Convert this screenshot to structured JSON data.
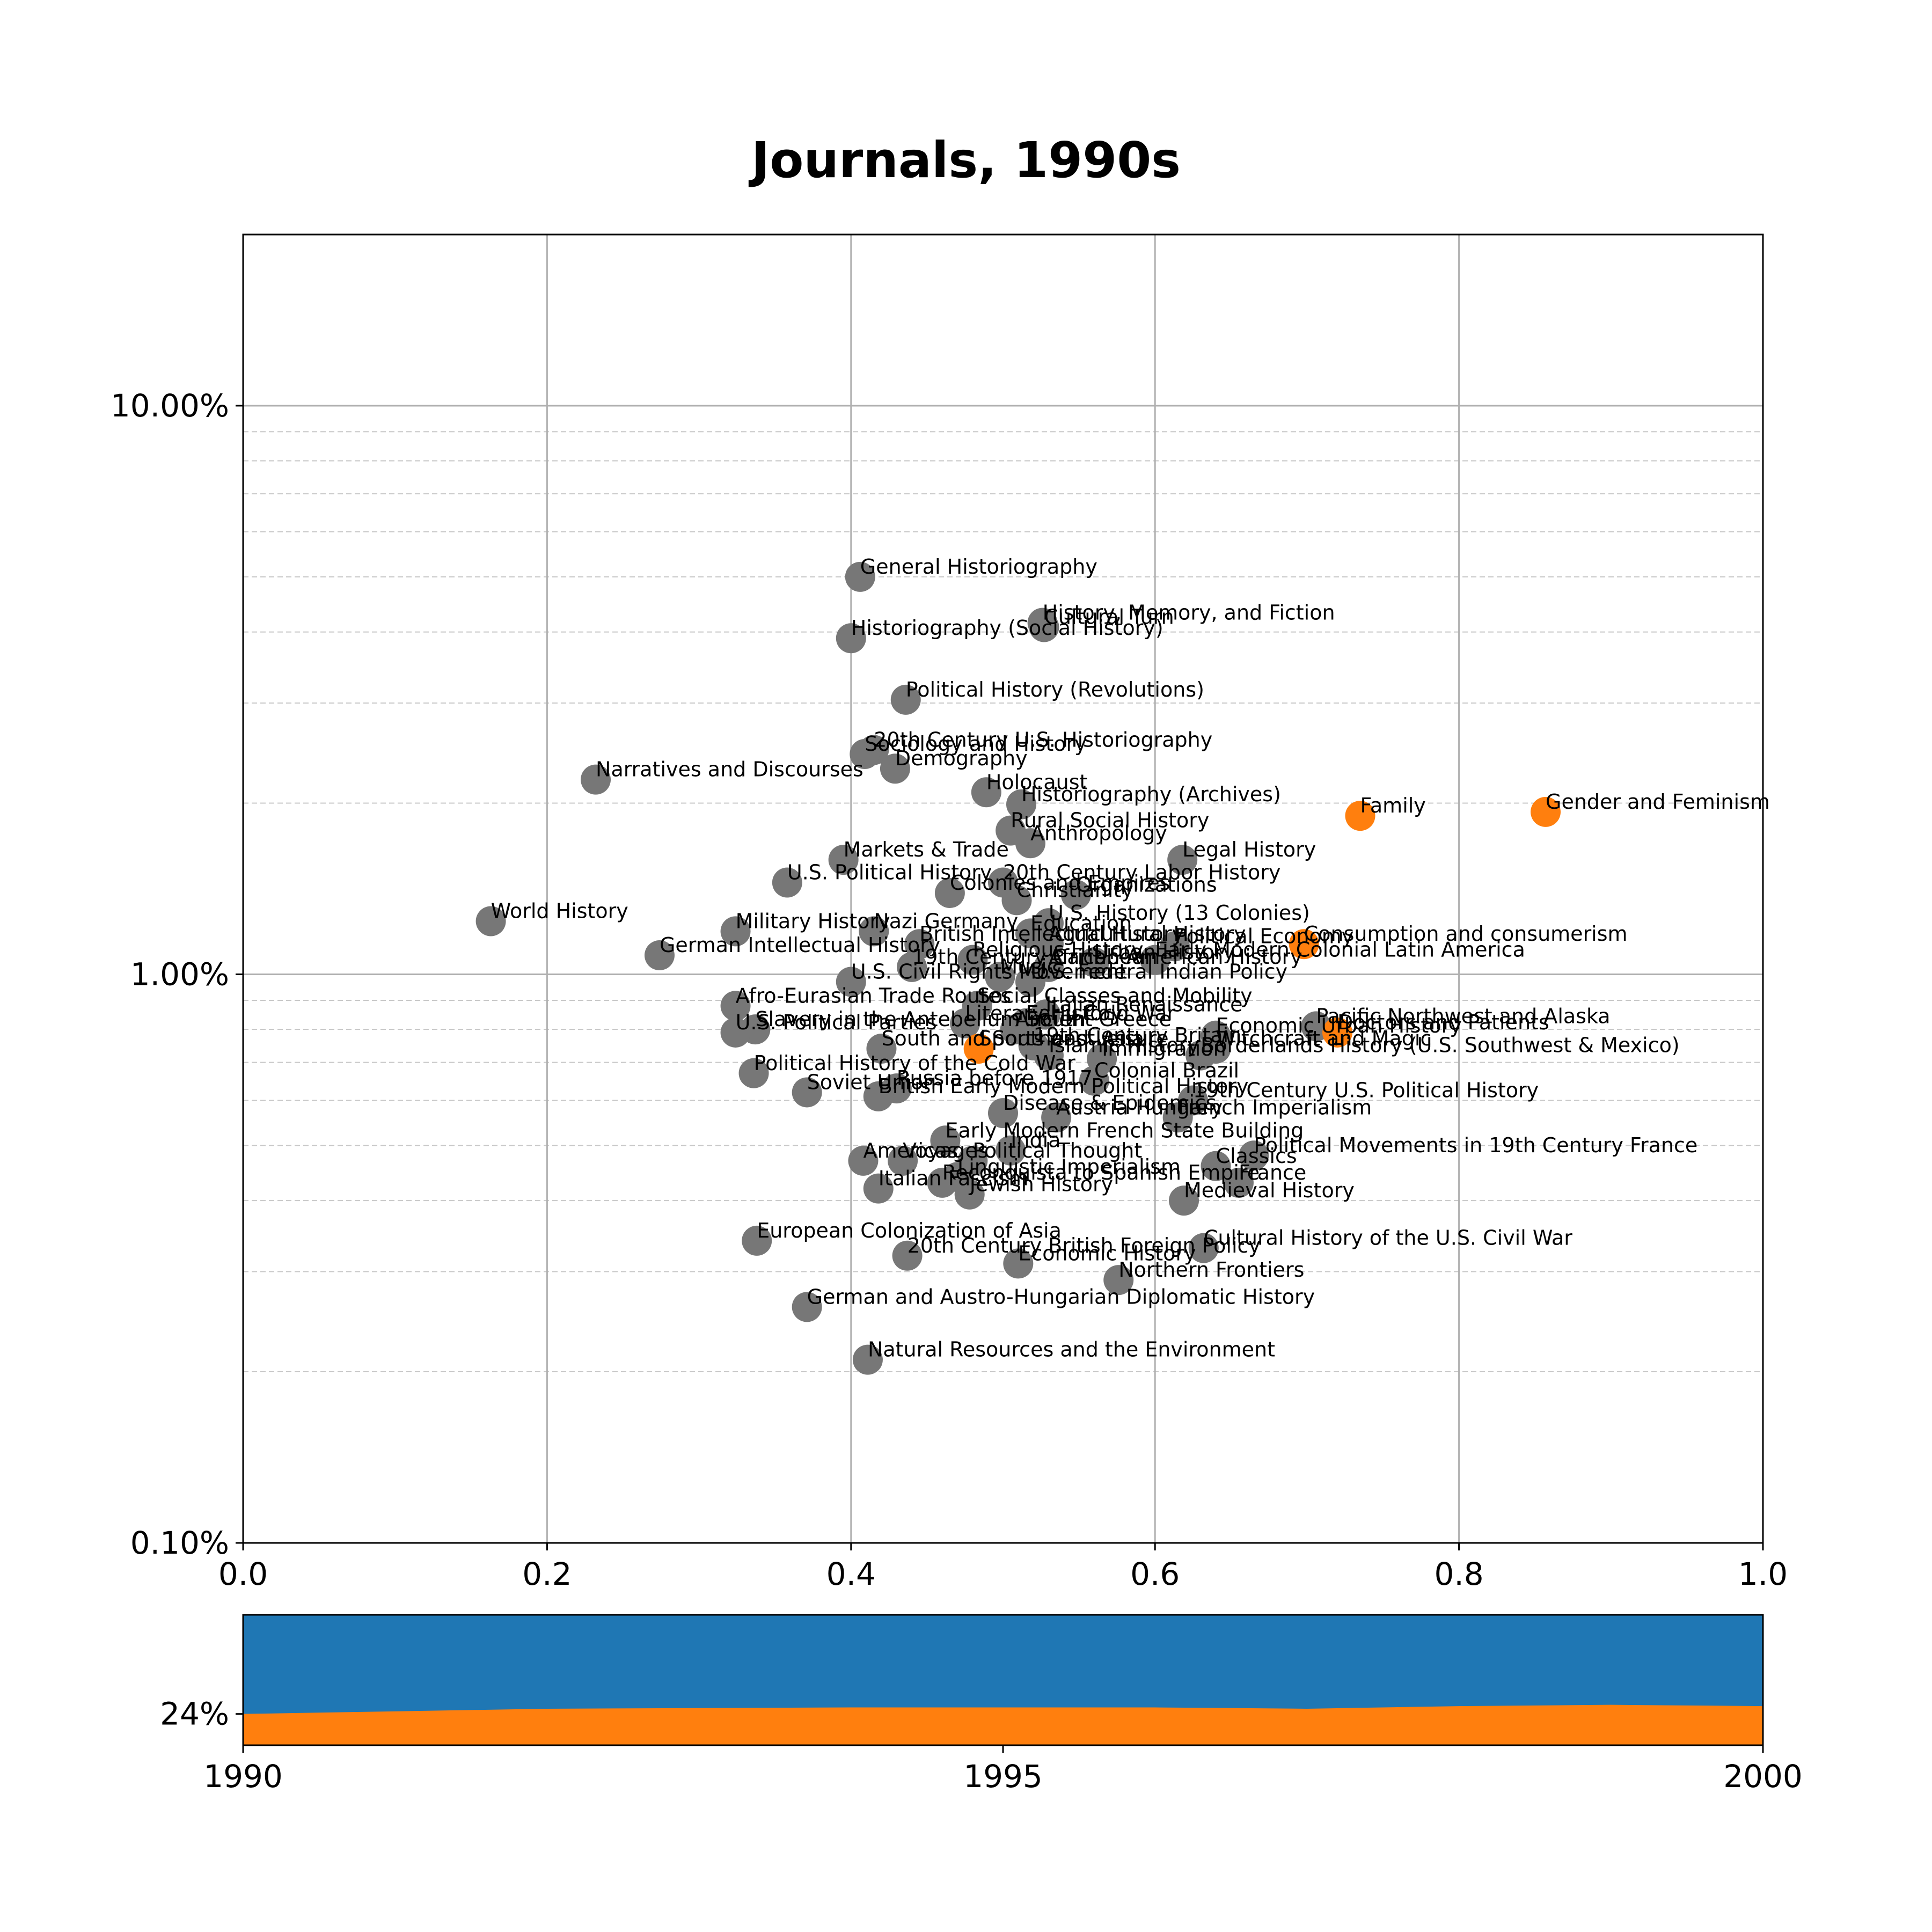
{
  "title": "Journals, 1990s",
  "colors": {
    "other": "#777777",
    "highlight": "#ff7f0e",
    "area_top": "#1f77b4",
    "area_bottom": "#ff7f0e",
    "grid": "#b0b0b0"
  },
  "chart_data": [
    {
      "type": "scatter",
      "title": "Journals, 1990s",
      "xlim": [
        0,
        1
      ],
      "ylim": [
        0.001,
        0.2
      ],
      "yscale": "log",
      "grid": true,
      "x_ticks": [
        "0.0",
        "0.2",
        "0.4",
        "0.6",
        "0.8",
        "1.0"
      ],
      "y_ticks": [
        {
          "value": 0.1,
          "label": "10.00%"
        },
        {
          "value": 0.01,
          "label": "1.00%"
        },
        {
          "value": 0.001,
          "label": "0.10%"
        }
      ],
      "points": [
        {
          "label": "General Historiography",
          "x": 0.406,
          "y": 0.05,
          "highlight": false
        },
        {
          "label": "History, Memory, and Fiction",
          "x": 0.526,
          "y": 0.0415,
          "highlight": false
        },
        {
          "label": "Cultural Turn",
          "x": 0.527,
          "y": 0.0408,
          "highlight": false
        },
        {
          "label": "Historiography (Social History)",
          "x": 0.4,
          "y": 0.039,
          "highlight": false
        },
        {
          "label": "Political History (Revolutions)",
          "x": 0.436,
          "y": 0.0304,
          "highlight": false
        },
        {
          "label": "20th Century U.S. Historiography",
          "x": 0.415,
          "y": 0.0248,
          "highlight": false
        },
        {
          "label": "Sociology and History",
          "x": 0.409,
          "y": 0.0244,
          "highlight": false
        },
        {
          "label": "Demography",
          "x": 0.429,
          "y": 0.023,
          "highlight": false
        },
        {
          "label": "Narratives and Discourses",
          "x": 0.232,
          "y": 0.022,
          "highlight": false
        },
        {
          "label": "Holocaust",
          "x": 0.489,
          "y": 0.0209,
          "highlight": false
        },
        {
          "label": "Historiography (Archives)",
          "x": 0.512,
          "y": 0.0199,
          "highlight": false
        },
        {
          "label": "Family",
          "x": 0.735,
          "y": 0.019,
          "highlight": true
        },
        {
          "label": "Gender and Feminism",
          "x": 0.857,
          "y": 0.0193,
          "highlight": true
        },
        {
          "label": "Rural Social History",
          "x": 0.505,
          "y": 0.0179,
          "highlight": false
        },
        {
          "label": "Anthropology",
          "x": 0.518,
          "y": 0.017,
          "highlight": false
        },
        {
          "label": "Legal History",
          "x": 0.618,
          "y": 0.0159,
          "highlight": false
        },
        {
          "label": "Markets & Trade",
          "x": 0.395,
          "y": 0.0159,
          "highlight": false
        },
        {
          "label": "U.S. Political History",
          "x": 0.358,
          "y": 0.0145,
          "highlight": false
        },
        {
          "label": "20th Century Labor History",
          "x": 0.5,
          "y": 0.0145,
          "highlight": false
        },
        {
          "label": "Colonies and Empires",
          "x": 0.465,
          "y": 0.0139,
          "highlight": false
        },
        {
          "label": "Christianity",
          "x": 0.509,
          "y": 0.0135,
          "highlight": false
        },
        {
          "label": "Organizations",
          "x": 0.548,
          "y": 0.0138,
          "highlight": false
        },
        {
          "label": "World History",
          "x": 0.163,
          "y": 0.0124,
          "highlight": false
        },
        {
          "label": "U.S. History (13 Colonies)",
          "x": 0.53,
          "y": 0.0123,
          "highlight": false
        },
        {
          "label": "Military History",
          "x": 0.324,
          "y": 0.0119,
          "highlight": false
        },
        {
          "label": "Nazi Germany",
          "x": 0.415,
          "y": 0.0119,
          "highlight": false
        },
        {
          "label": "Education",
          "x": 0.518,
          "y": 0.0118,
          "highlight": false
        },
        {
          "label": "British Intellectual History",
          "x": 0.445,
          "y": 0.0113,
          "highlight": false
        },
        {
          "label": "Agricultural History",
          "x": 0.53,
          "y": 0.0113,
          "highlight": false
        },
        {
          "label": "Political Economy",
          "x": 0.613,
          "y": 0.0112,
          "highlight": false
        },
        {
          "label": "Consumption and consumerism",
          "x": 0.698,
          "y": 0.0113,
          "highlight": true
        },
        {
          "label": "German Intellectual History",
          "x": 0.274,
          "y": 0.0108,
          "highlight": false
        },
        {
          "label": "Early Modern Colonial Latin America",
          "x": 0.6,
          "y": 0.0106,
          "highlight": false
        },
        {
          "label": "Religious History",
          "x": 0.48,
          "y": 0.0106,
          "highlight": false
        },
        {
          "label": "Urban History",
          "x": 0.56,
          "y": 0.0105,
          "highlight": false
        },
        {
          "label": "19th Century Caribbean",
          "x": 0.44,
          "y": 0.0103,
          "highlight": false
        },
        {
          "label": "African American History",
          "x": 0.53,
          "y": 0.0103,
          "highlight": false
        },
        {
          "label": "U.S. Civil Rights Movement",
          "x": 0.4,
          "y": 0.0097,
          "highlight": false
        },
        {
          "label": "Music",
          "x": 0.498,
          "y": 0.0099,
          "highlight": false
        },
        {
          "label": "U.S. Federal Indian Policy",
          "x": 0.518,
          "y": 0.0097,
          "highlight": false
        },
        {
          "label": "Afro-Eurasian Trade Routes",
          "x": 0.324,
          "y": 0.0088,
          "highlight": false
        },
        {
          "label": "Social Classes and Mobility",
          "x": 0.483,
          "y": 0.0088,
          "highlight": false
        },
        {
          "label": "Italian Renaissance",
          "x": 0.528,
          "y": 0.0085,
          "highlight": false
        },
        {
          "label": "Early Cold War",
          "x": 0.515,
          "y": 0.0082,
          "highlight": false
        },
        {
          "label": "Slavery in the Antebellum South",
          "x": 0.337,
          "y": 0.008,
          "highlight": false
        },
        {
          "label": "U.S. Political Parties",
          "x": 0.324,
          "y": 0.0079,
          "highlight": false
        },
        {
          "label": "Literary History",
          "x": 0.475,
          "y": 0.0082,
          "highlight": false
        },
        {
          "label": "Pacific Northwest and Alaska",
          "x": 0.706,
          "y": 0.0081,
          "highlight": false
        },
        {
          "label": "Doctors and Patients",
          "x": 0.72,
          "y": 0.0079,
          "highlight": true
        },
        {
          "label": "Ancient Greece",
          "x": 0.508,
          "y": 0.008,
          "highlight": false
        },
        {
          "label": "Economic Urban History",
          "x": 0.64,
          "y": 0.0078,
          "highlight": false
        },
        {
          "label": "South and Southeast Asia",
          "x": 0.42,
          "y": 0.0074,
          "highlight": false
        },
        {
          "label": "Sports and Leisure",
          "x": 0.484,
          "y": 0.0074,
          "highlight": true
        },
        {
          "label": "19th Century Britain",
          "x": 0.52,
          "y": 0.0075,
          "highlight": false
        },
        {
          "label": "Witchcraft and Magic",
          "x": 0.64,
          "y": 0.0074,
          "highlight": false
        },
        {
          "label": "Islamic History",
          "x": 0.53,
          "y": 0.0072,
          "highlight": false
        },
        {
          "label": "Borderlands History (U.S. Southwest & Mexico)",
          "x": 0.63,
          "y": 0.0072,
          "highlight": false
        },
        {
          "label": "Immigration",
          "x": 0.565,
          "y": 0.0071,
          "highlight": false
        },
        {
          "label": "Political History of the Cold War",
          "x": 0.336,
          "y": 0.0067,
          "highlight": false
        },
        {
          "label": "Colonial Brazil",
          "x": 0.56,
          "y": 0.0065,
          "highlight": false
        },
        {
          "label": "Soviet Union",
          "x": 0.371,
          "y": 0.0062,
          "highlight": false
        },
        {
          "label": "Russia before 1917",
          "x": 0.43,
          "y": 0.0063,
          "highlight": false
        },
        {
          "label": "British Early Modern Political History",
          "x": 0.418,
          "y": 0.0061,
          "highlight": false
        },
        {
          "label": "19th Century U.S. Political History",
          "x": 0.625,
          "y": 0.006,
          "highlight": false
        },
        {
          "label": "Disease & Epidemics",
          "x": 0.5,
          "y": 0.0057,
          "highlight": false
        },
        {
          "label": "Austria-Hungary",
          "x": 0.535,
          "y": 0.0056,
          "highlight": false
        },
        {
          "label": "French Imperialism",
          "x": 0.615,
          "y": 0.0056,
          "highlight": false
        },
        {
          "label": "Early Modern French State Building",
          "x": 0.462,
          "y": 0.0051,
          "highlight": false
        },
        {
          "label": "India",
          "x": 0.505,
          "y": 0.0049,
          "highlight": false
        },
        {
          "label": "Americas",
          "x": 0.408,
          "y": 0.0047,
          "highlight": false
        },
        {
          "label": "Voyages",
          "x": 0.434,
          "y": 0.0047,
          "highlight": false
        },
        {
          "label": "Political Thought",
          "x": 0.48,
          "y": 0.0047,
          "highlight": false
        },
        {
          "label": "Political Movements in 19th Century France",
          "x": 0.665,
          "y": 0.0048,
          "highlight": false
        },
        {
          "label": "Classics",
          "x": 0.64,
          "y": 0.0046,
          "highlight": false
        },
        {
          "label": "Linguistic Imperialism",
          "x": 0.47,
          "y": 0.0044,
          "highlight": false
        },
        {
          "label": "Reconquista to Spanish Empire",
          "x": 0.46,
          "y": 0.0043,
          "highlight": false
        },
        {
          "label": "France",
          "x": 0.655,
          "y": 0.0043,
          "highlight": false
        },
        {
          "label": "Italian Fascism",
          "x": 0.418,
          "y": 0.0042,
          "highlight": false
        },
        {
          "label": "Jewish History",
          "x": 0.478,
          "y": 0.0041,
          "highlight": false
        },
        {
          "label": "Medieval History",
          "x": 0.619,
          "y": 0.004,
          "highlight": false
        },
        {
          "label": "European Colonization of Asia",
          "x": 0.338,
          "y": 0.0034,
          "highlight": false
        },
        {
          "label": "Cultural History of the U.S. Civil War",
          "x": 0.632,
          "y": 0.0033,
          "highlight": false
        },
        {
          "label": "20th Century British Foreign Policy",
          "x": 0.437,
          "y": 0.0032,
          "highlight": false
        },
        {
          "label": "Economic History",
          "x": 0.51,
          "y": 0.0031,
          "highlight": false
        },
        {
          "label": "Northern Frontiers",
          "x": 0.576,
          "y": 0.0029,
          "highlight": false
        },
        {
          "label": "German and Austro-Hungarian Diplomatic History",
          "x": 0.371,
          "y": 0.0026,
          "highlight": false
        },
        {
          "label": "Natural Resources and the Environment",
          "x": 0.411,
          "y": 0.0021,
          "highlight": false
        }
      ]
    },
    {
      "type": "area",
      "x": [
        1990,
        1991,
        1992,
        1993,
        1994,
        1995,
        1996,
        1997,
        1998,
        1999,
        2000
      ],
      "x_ticks": [
        "1990",
        "1995",
        "2000"
      ],
      "y_tick_label": "24%",
      "ylim": [
        0,
        1
      ],
      "series": [
        {
          "values": [
            0.24,
            0.26,
            0.28,
            0.285,
            0.29,
            0.29,
            0.29,
            0.28,
            0.3,
            0.31,
            0.3
          ]
        }
      ]
    }
  ]
}
